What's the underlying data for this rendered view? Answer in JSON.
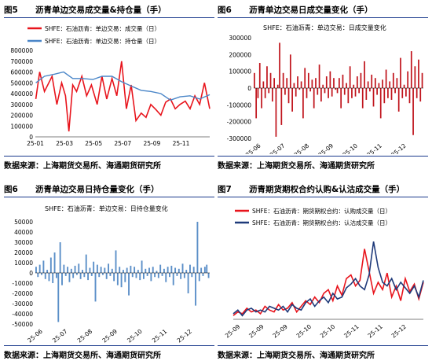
{
  "panels": [
    {
      "fig": "图5",
      "title": "沥青单边交易成交量&持仓量（手）",
      "source": "数据来源：上海期货交易所、海通期货研究所",
      "chart_data": {
        "type": "line",
        "legend": [
          "SHFE：石油沥青：单边交易：成交量（日）",
          "SHFE：石油沥青：单边交易：持仓量（日）"
        ],
        "legend_placement": "top-left",
        "ylim": [
          0,
          800000
        ],
        "yticks": [
          "800000",
          "700000",
          "600000",
          "500000",
          "400000",
          "300000",
          "200000",
          "100000",
          "0"
        ],
        "xticks": [
          "25-01",
          "25-03",
          "25-05",
          "25-07",
          "25-09",
          "25-11"
        ],
        "x_range": [
          "2025-01-01",
          "2025-12-31"
        ],
        "colors": [
          "#e8141c",
          "#4a86c8"
        ],
        "series": [
          {
            "name": "SHFE：石油沥青：单边交易：成交量（日）",
            "x": [
              "2025-01-02",
              "2025-01-10",
              "2025-01-20",
              "2025-02-05",
              "2025-02-15",
              "2025-02-25",
              "2025-03-05",
              "2025-03-12",
              "2025-03-20",
              "2025-03-28",
              "2025-04-08",
              "2025-04-18",
              "2025-04-28",
              "2025-05-10",
              "2025-05-20",
              "2025-05-30",
              "2025-06-10",
              "2025-06-20",
              "2025-06-30",
              "2025-07-10",
              "2025-07-20",
              "2025-07-30",
              "2025-08-10",
              "2025-08-20",
              "2025-08-30",
              "2025-09-10",
              "2025-09-20",
              "2025-09-30",
              "2025-10-10",
              "2025-10-20",
              "2025-10-30",
              "2025-11-10",
              "2025-11-20",
              "2025-11-30",
              "2025-12-10",
              "2025-12-20",
              "2025-12-31"
            ],
            "values": [
              350000,
              600000,
              420000,
              560000,
              300000,
              500000,
              380000,
              50000,
              480000,
              420000,
              560000,
              380000,
              480000,
              300000,
              560000,
              350000,
              540000,
              380000,
              700000,
              260000,
              480000,
              150000,
              220000,
              180000,
              300000,
              250000,
              200000,
              320000,
              350000,
              260000,
              300000,
              330000,
              260000,
              380000,
              300000,
              500000,
              260000
            ]
          },
          {
            "name": "SHFE：石油沥青：单边交易：持仓量（日）",
            "x": [
              "2025-01-02",
              "2025-01-20",
              "2025-02-10",
              "2025-03-01",
              "2025-03-20",
              "2025-04-10",
              "2025-05-01",
              "2025-05-20",
              "2025-06-10",
              "2025-06-30",
              "2025-07-20",
              "2025-08-10",
              "2025-08-30",
              "2025-09-20",
              "2025-10-10",
              "2025-10-30",
              "2025-11-20",
              "2025-12-10",
              "2025-12-31"
            ],
            "values": [
              500000,
              560000,
              580000,
              600000,
              540000,
              540000,
              530000,
              560000,
              560000,
              510000,
              470000,
              430000,
              420000,
              400000,
              340000,
              370000,
              380000,
              350000,
              390000
            ]
          }
        ]
      }
    },
    {
      "fig": "图6",
      "title": "沥青单边交易日成交量变化（手）",
      "source": "数据来源：上海期货交易所、海通期货研究所",
      "chart_data": {
        "type": "bar",
        "legend": [
          "SHFE：石油沥青：单边交易：日成交量变化"
        ],
        "ylim": [
          -300000,
          300000
        ],
        "yticks": [
          "300000",
          "200000",
          "100000",
          "0",
          "-100000",
          "-200000",
          "-300000"
        ],
        "xticks": [
          "25-06",
          "25-07",
          "25-08",
          "25-09",
          "25-10",
          "25-11",
          "25-12"
        ],
        "color": "#c0141c",
        "values": [
          90000,
          -180000,
          -60000,
          150000,
          -120000,
          40000,
          -60000,
          130000,
          -30000,
          90000,
          -80000,
          60000,
          -290000,
          20000,
          270000,
          -220000,
          90000,
          -40000,
          60000,
          -90000,
          200000,
          -140000,
          30000,
          -50000,
          70000,
          -10000,
          40000,
          -180000,
          120000,
          -60000,
          90000,
          -20000,
          50000,
          -120000,
          60000,
          -40000,
          140000,
          -80000,
          20000,
          -30000,
          70000,
          -60000,
          100000,
          -50000,
          60000,
          -10000,
          -30000,
          60000,
          -120000,
          80000,
          -40000,
          30000,
          -90000,
          130000,
          -60000,
          20000,
          -50000,
          70000,
          -30000,
          90000,
          -120000,
          160000,
          -70000,
          40000,
          -20000,
          80000,
          -110000,
          60000,
          -40000,
          30000,
          -180000,
          50000,
          -90000,
          110000,
          -60000,
          40000,
          -70000,
          90000,
          -30000,
          60000,
          -140000,
          180000,
          -60000,
          20000,
          -50000,
          100000,
          -90000,
          220000,
          -280000,
          130000,
          -60000,
          170000,
          -80000,
          90000
        ]
      }
    },
    {
      "fig": "图6",
      "title": "沥青单边交易日持仓量变化（手）",
      "source": "数据来源：上海期货交易所、海通期货研究所",
      "chart_data": {
        "type": "bar",
        "legend": [
          "SHFE：石油沥青：单边交易：日持仓量变化"
        ],
        "ylim": [
          -50000,
          50000
        ],
        "yticks": [
          "50000",
          "40000",
          "30000",
          "20000",
          "10000",
          "0",
          "-10000",
          "-20000",
          "-30000",
          "-40000",
          "-50000"
        ],
        "xticks": [
          "25-06",
          "25-07",
          "25-08",
          "25-09",
          "25-10",
          "25-11",
          "25-12"
        ],
        "color": "#5b8fc8",
        "values": [
          6000,
          -4000,
          8000,
          -2000,
          12000,
          -6000,
          3000,
          -8000,
          15000,
          -10000,
          20000,
          -5000,
          -48000,
          30000,
          -12000,
          8000,
          -3000,
          6000,
          -9000,
          4000,
          -5000,
          7000,
          -2000,
          9000,
          -6000,
          3000,
          -4000,
          18000,
          -7000,
          5000,
          -3000,
          11000,
          -28000,
          8000,
          -4000,
          6000,
          -2000,
          5000,
          -6000,
          9000,
          -3000,
          4000,
          -8000,
          22000,
          -12000,
          6000,
          -14000,
          3000,
          -9000,
          5000,
          -22000,
          7000,
          -4000,
          6000,
          -5000,
          3000,
          -7000,
          12000,
          -6000,
          4000,
          -3000,
          5000,
          -8000,
          6000,
          -4000,
          2000,
          -5000,
          8000,
          -3000,
          4000,
          -9000,
          6000,
          -4000,
          7000,
          -12000,
          5000,
          -3000,
          4000,
          -6000,
          9000,
          -5000,
          3000,
          -20000,
          8000,
          -4000,
          6000,
          -32000,
          50000,
          -8000,
          5000,
          -3000,
          6000,
          8000,
          -5000
        ]
      }
    },
    {
      "fig": "图7",
      "title": "沥青期货期权合约认购&认沽成交量（手）",
      "source": "数据来源：上海期货交易所、海通期货研究所",
      "chart_data": {
        "type": "line",
        "legend": [
          "SHFE：石油沥青：期货期权合约：认购成交量（日）",
          "SHFE：石油沥青：期货期权合约：认沽成交量（日）"
        ],
        "legend_placement": "top-left",
        "xticks": [
          "25-09",
          "25-09",
          "25-09",
          "25-10",
          "25-10",
          "25-11",
          "25-11",
          "25-12"
        ],
        "colors": [
          "#e8141c",
          "#1f3a7a"
        ],
        "series": [
          {
            "name": "SHFE：石油沥青：期货期权合约：认购成交量（日）",
            "values": [
              2,
              4,
              3,
              6,
              4,
              5,
              3,
              7,
              5,
              4,
              8,
              5,
              6,
              9,
              4,
              7,
              10,
              8,
              12,
              9,
              14,
              16,
              10,
              18,
              13,
              22,
              24,
              18,
              21,
              38,
              26,
              14,
              20,
              16,
              25,
              12,
              18,
              10,
              22,
              15,
              19,
              11,
              20
            ]
          },
          {
            "name": "SHFE：石油沥青：期货期权合约：认沽成交量（日）",
            "values": [
              3,
              5,
              2,
              5,
              6,
              4,
              5,
              4,
              7,
              6,
              5,
              7,
              4,
              8,
              6,
              5,
              9,
              11,
              7,
              10,
              12,
              9,
              14,
              11,
              12,
              17,
              19,
              22,
              18,
              16,
              24,
              42,
              28,
              20,
              18,
              22,
              16,
              20,
              17,
              14,
              18,
              12,
              21
            ]
          }
        ]
      }
    }
  ]
}
